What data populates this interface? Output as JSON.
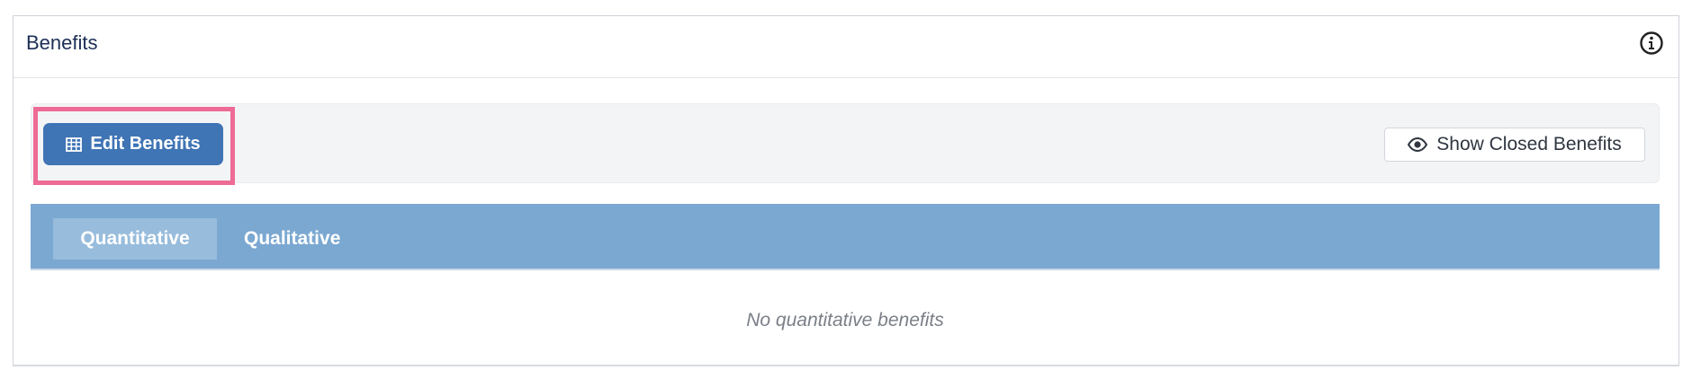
{
  "header": {
    "title": "Benefits"
  },
  "toolbar": {
    "edit_button": "Edit Benefits",
    "show_closed_button": "Show Closed Benefits"
  },
  "tabs": [
    "Quantitative",
    "Qualitative"
  ],
  "empty_message": "No quantitative benefits"
}
